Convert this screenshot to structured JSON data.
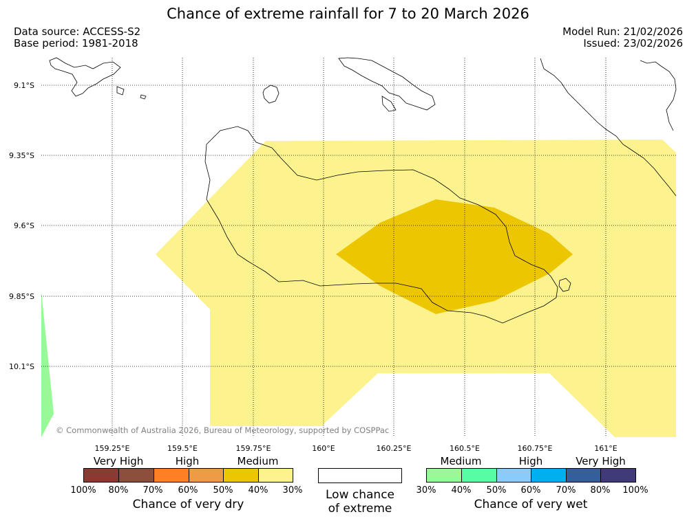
{
  "title": "Chance of extreme rainfall for 7 to 20 March 2026",
  "meta": {
    "data_source": "Data source: ACCESS-S2",
    "base_period": "Base period: 1981-2018",
    "model_run": "Model Run: 21/02/2026",
    "issued": "Issued: 23/02/2026"
  },
  "map": {
    "latitudes": [
      "9.1°S",
      "9.35°S",
      "9.6°S",
      "9.85°S",
      "10.1°S"
    ],
    "longitudes": [
      "159.25°E",
      "159.5°E",
      "159.75°E",
      "160°E",
      "160.25°E",
      "160.5°E",
      "160.75°E",
      "161°E"
    ],
    "copyright": "© Commonwealth of Australia 2026, Bureau of Meteorology, supported by COSPPac"
  },
  "legend": {
    "dry": {
      "headings": [
        "Very High",
        "High",
        "Medium"
      ],
      "colors": [
        "#8b3a32",
        "#8b4f3c",
        "#ff7f27",
        "#ee9b48",
        "#ecc600",
        "#fcf38f"
      ],
      "ticks": [
        "100%",
        "80%",
        "70%",
        "60%",
        "50%",
        "40%",
        "30%"
      ],
      "caption": "Chance of very dry"
    },
    "low": {
      "caption_line1": "Low chance",
      "caption_line2": "of extreme"
    },
    "wet": {
      "headings": [
        "Medium",
        "High",
        "Very High"
      ],
      "colors": [
        "#98fa96",
        "#57fca4",
        "#8acbfa",
        "#00b0ee",
        "#345f9a",
        "#403a78"
      ],
      "ticks": [
        "30%",
        "40%",
        "50%",
        "60%",
        "70%",
        "80%",
        "100%"
      ],
      "caption": "Chance of very wet"
    }
  }
}
